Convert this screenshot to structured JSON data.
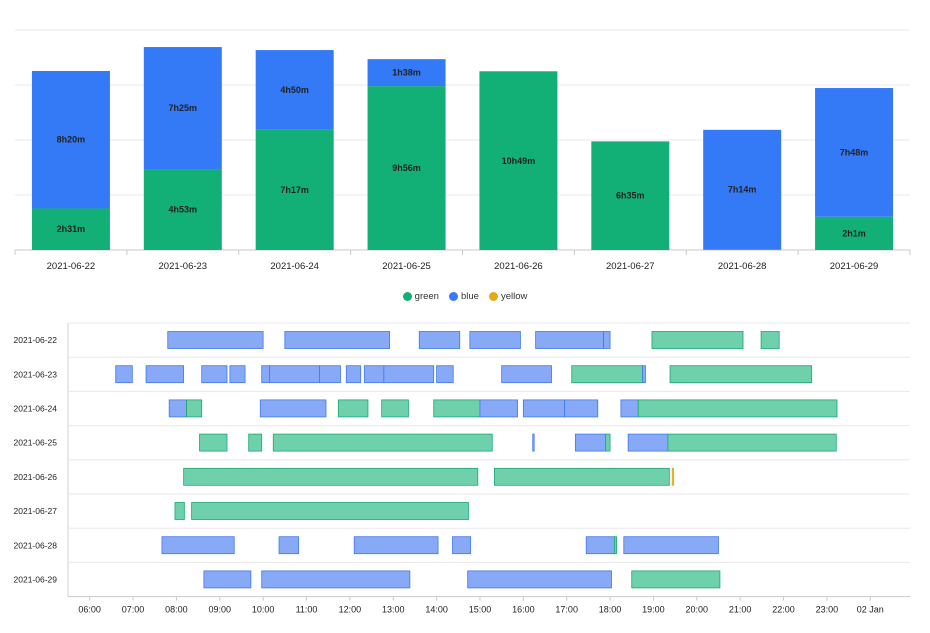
{
  "colors": {
    "green": "#12b076",
    "blue": "#3479f6",
    "yellow": "#e6a817",
    "timeline_green": "#6fd0ac",
    "timeline_green_stroke": "#19a873",
    "timeline_blue": "#88aaf6",
    "timeline_blue_stroke": "#3f78ee",
    "timeline_yellow": "#f3c04b"
  },
  "chart_data": [
    {
      "type": "bar",
      "stacked": true,
      "categories": [
        "2021-06-22",
        "2021-06-23",
        "2021-06-24",
        "2021-06-25",
        "2021-06-26",
        "2021-06-27",
        "2021-06-28",
        "2021-06-29"
      ],
      "series": [
        {
          "name": "green",
          "values": [
            151,
            293,
            437,
            596,
            649,
            395,
            3,
            121
          ],
          "labels": [
            "2h31m",
            "4h53m",
            "7h17m",
            "9h56m",
            "10h49m",
            "6h35m",
            "",
            "2h1m"
          ]
        },
        {
          "name": "blue",
          "values": [
            500,
            445,
            290,
            98,
            0,
            0,
            434,
            468
          ],
          "labels": [
            "8h20m",
            "7h25m",
            "4h50m",
            "1h38m",
            "",
            "",
            "7h14m",
            "7h48m"
          ]
        },
        {
          "name": "yellow",
          "values": [
            0,
            0,
            0,
            0,
            2,
            0,
            0,
            0
          ],
          "labels": [
            "",
            "",
            "",
            "",
            "",
            "",
            "",
            ""
          ]
        }
      ],
      "value_unit": "minutes",
      "ylim": [
        0,
        800
      ],
      "grid": true,
      "legend": "bottom-center"
    },
    {
      "type": "timeline",
      "rows": [
        "2021-06-22",
        "2021-06-23",
        "2021-06-24",
        "2021-06-25",
        "2021-06-26",
        "2021-06-27",
        "2021-06-28",
        "2021-06-29"
      ],
      "x_ticks": [
        "06:00",
        "07:00",
        "08:00",
        "09:00",
        "10:00",
        "11:00",
        "12:00",
        "13:00",
        "14:00",
        "15:00",
        "16:00",
        "17:00",
        "18:00",
        "19:00",
        "20:00",
        "21:00",
        "22:00",
        "23:00",
        "02 Jan"
      ],
      "xlim": [
        "05:30",
        "24:55"
      ],
      "segments": [
        {
          "row": "2021-06-22",
          "start": "07:48",
          "end": "10:00",
          "series": "blue"
        },
        {
          "row": "2021-06-22",
          "start": "10:30",
          "end": "12:55",
          "series": "blue"
        },
        {
          "row": "2021-06-22",
          "start": "13:36",
          "end": "14:32",
          "series": "blue"
        },
        {
          "row": "2021-06-22",
          "start": "14:46",
          "end": "15:56",
          "series": "blue"
        },
        {
          "row": "2021-06-22",
          "start": "16:17",
          "end": "17:51",
          "series": "blue"
        },
        {
          "row": "2021-06-22",
          "start": "17:51",
          "end": "18:00",
          "series": "blue"
        },
        {
          "row": "2021-06-22",
          "start": "18:58",
          "end": "21:04",
          "series": "green"
        },
        {
          "row": "2021-06-22",
          "start": "21:29",
          "end": "21:54",
          "series": "green"
        },
        {
          "row": "2021-06-23",
          "start": "06:36",
          "end": "06:59",
          "series": "blue"
        },
        {
          "row": "2021-06-23",
          "start": "07:18",
          "end": "08:10",
          "series": "blue"
        },
        {
          "row": "2021-06-23",
          "start": "08:35",
          "end": "09:10",
          "series": "blue"
        },
        {
          "row": "2021-06-23",
          "start": "09:14",
          "end": "09:35",
          "series": "blue"
        },
        {
          "row": "2021-06-23",
          "start": "09:58",
          "end": "10:09",
          "series": "blue"
        },
        {
          "row": "2021-06-23",
          "start": "10:09",
          "end": "11:18",
          "series": "blue"
        },
        {
          "row": "2021-06-23",
          "start": "11:18",
          "end": "11:47",
          "series": "blue"
        },
        {
          "row": "2021-06-23",
          "start": "11:55",
          "end": "12:15",
          "series": "blue"
        },
        {
          "row": "2021-06-23",
          "start": "12:20",
          "end": "12:47",
          "series": "blue"
        },
        {
          "row": "2021-06-23",
          "start": "12:47",
          "end": "13:56",
          "series": "blue"
        },
        {
          "row": "2021-06-23",
          "start": "14:00",
          "end": "14:23",
          "series": "blue"
        },
        {
          "row": "2021-06-23",
          "start": "15:30",
          "end": "16:39",
          "series": "blue"
        },
        {
          "row": "2021-06-23",
          "start": "17:07",
          "end": "18:45",
          "series": "green"
        },
        {
          "row": "2021-06-23",
          "start": "18:45",
          "end": "18:49",
          "series": "blue"
        },
        {
          "row": "2021-06-23",
          "start": "19:23",
          "end": "22:39",
          "series": "green"
        },
        {
          "row": "2021-06-24",
          "start": "07:50",
          "end": "08:14",
          "series": "blue"
        },
        {
          "row": "2021-06-24",
          "start": "08:14",
          "end": "08:35",
          "series": "green"
        },
        {
          "row": "2021-06-24",
          "start": "09:56",
          "end": "11:27",
          "series": "blue"
        },
        {
          "row": "2021-06-24",
          "start": "11:44",
          "end": "12:25",
          "series": "green"
        },
        {
          "row": "2021-06-24",
          "start": "12:44",
          "end": "13:21",
          "series": "green"
        },
        {
          "row": "2021-06-24",
          "start": "13:56",
          "end": "15:00",
          "series": "green"
        },
        {
          "row": "2021-06-24",
          "start": "15:00",
          "end": "15:52",
          "series": "blue"
        },
        {
          "row": "2021-06-24",
          "start": "16:00",
          "end": "16:57",
          "series": "blue"
        },
        {
          "row": "2021-06-24",
          "start": "16:57",
          "end": "17:43",
          "series": "blue"
        },
        {
          "row": "2021-06-24",
          "start": "18:15",
          "end": "18:39",
          "series": "blue"
        },
        {
          "row": "2021-06-24",
          "start": "18:39",
          "end": "23:14",
          "series": "green"
        },
        {
          "row": "2021-06-25",
          "start": "08:32",
          "end": "09:10",
          "series": "green"
        },
        {
          "row": "2021-06-25",
          "start": "09:40",
          "end": "09:58",
          "series": "green"
        },
        {
          "row": "2021-06-25",
          "start": "10:14",
          "end": "15:17",
          "series": "green"
        },
        {
          "row": "2021-06-25",
          "start": "16:13",
          "end": "16:15",
          "series": "blue"
        },
        {
          "row": "2021-06-25",
          "start": "17:12",
          "end": "17:54",
          "series": "blue"
        },
        {
          "row": "2021-06-25",
          "start": "17:54",
          "end": "18:00",
          "series": "green"
        },
        {
          "row": "2021-06-25",
          "start": "18:25",
          "end": "19:20",
          "series": "blue"
        },
        {
          "row": "2021-06-25",
          "start": "19:20",
          "end": "23:13",
          "series": "green"
        },
        {
          "row": "2021-06-26",
          "start": "08:10",
          "end": "14:57",
          "series": "green"
        },
        {
          "row": "2021-06-26",
          "start": "15:20",
          "end": "19:22",
          "series": "green"
        },
        {
          "row": "2021-06-26",
          "start": "19:26",
          "end": "19:28",
          "series": "yellow"
        },
        {
          "row": "2021-06-27",
          "start": "07:58",
          "end": "08:11",
          "series": "green"
        },
        {
          "row": "2021-06-27",
          "start": "08:21",
          "end": "14:44",
          "series": "green"
        },
        {
          "row": "2021-06-28",
          "start": "07:40",
          "end": "09:20",
          "series": "blue"
        },
        {
          "row": "2021-06-28",
          "start": "10:22",
          "end": "10:49",
          "series": "blue"
        },
        {
          "row": "2021-06-28",
          "start": "12:06",
          "end": "14:02",
          "series": "blue"
        },
        {
          "row": "2021-06-28",
          "start": "14:22",
          "end": "14:47",
          "series": "blue"
        },
        {
          "row": "2021-06-28",
          "start": "17:27",
          "end": "18:06",
          "series": "blue"
        },
        {
          "row": "2021-06-28",
          "start": "18:06",
          "end": "18:09",
          "series": "green"
        },
        {
          "row": "2021-06-28",
          "start": "18:19",
          "end": "20:30",
          "series": "blue"
        },
        {
          "row": "2021-06-29",
          "start": "08:38",
          "end": "09:43",
          "series": "blue"
        },
        {
          "row": "2021-06-29",
          "start": "09:58",
          "end": "13:23",
          "series": "blue"
        },
        {
          "row": "2021-06-29",
          "start": "14:43",
          "end": "18:02",
          "series": "blue"
        },
        {
          "row": "2021-06-29",
          "start": "18:30",
          "end": "20:32",
          "series": "green"
        }
      ]
    }
  ]
}
